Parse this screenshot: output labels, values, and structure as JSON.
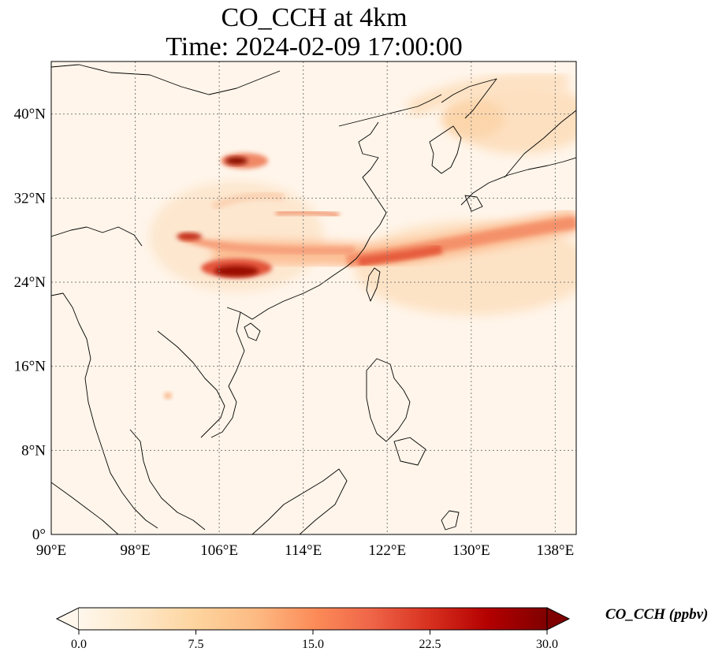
{
  "title": {
    "line1": "CO_CCH at 4km",
    "line2": "Time: 2024-02-09 17:00:00"
  },
  "map": {
    "extent": {
      "lon": [
        90,
        140
      ],
      "lat": [
        0,
        45
      ]
    },
    "lon_ticks": [
      "90°E",
      "98°E",
      "106°E",
      "114°E",
      "122°E",
      "130°E",
      "138°E"
    ],
    "lat_ticks": [
      "0°",
      "8°N",
      "16°N",
      "24°N",
      "32°N",
      "40°N"
    ],
    "gridlines": true,
    "gridline_style": "dotted"
  },
  "colorbar": {
    "label": "CO_CCH (ppbv)",
    "ticks": [
      "0.0",
      "7.5",
      "15.0",
      "22.5",
      "30.0"
    ],
    "range": [
      0,
      30
    ],
    "extend": "both",
    "colormap": "OrRd",
    "colors": [
      "#fff7ec",
      "#fee8c8",
      "#fdd49e",
      "#fdbb84",
      "#fc8d59",
      "#ef6548",
      "#d7301f",
      "#b30000",
      "#7f0000"
    ]
  }
}
